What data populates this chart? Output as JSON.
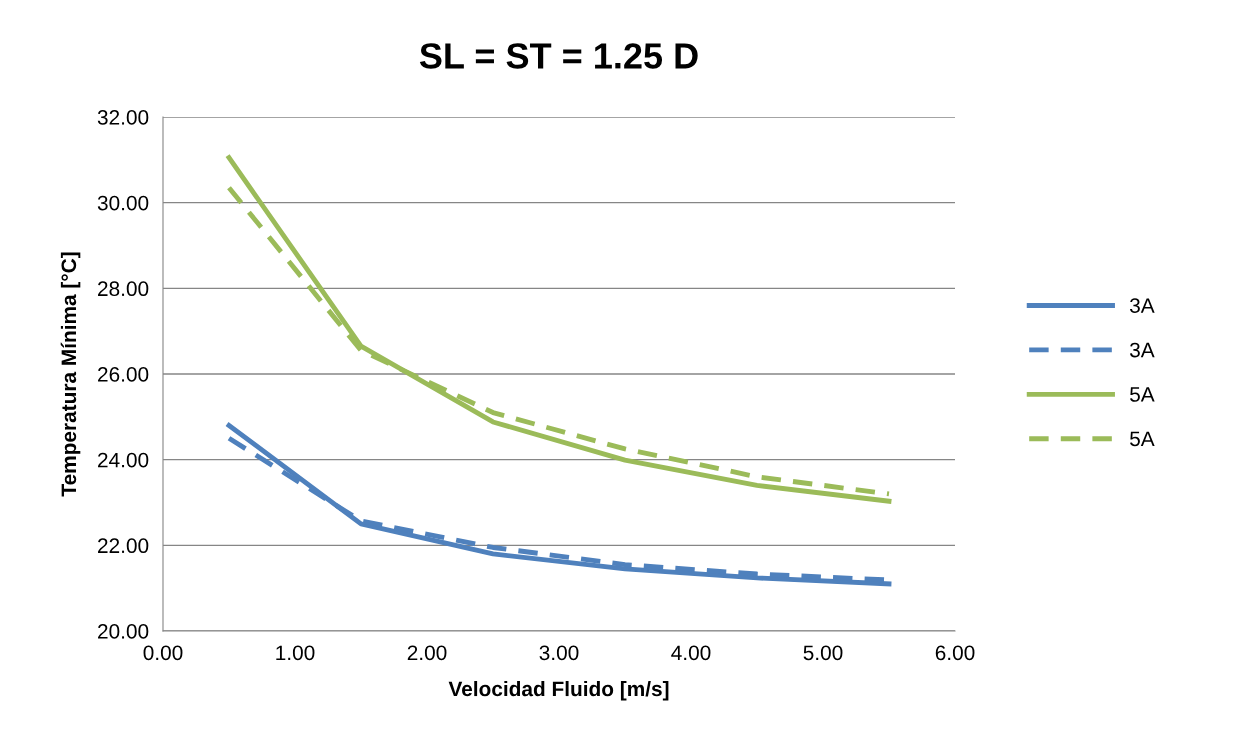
{
  "chart_data": {
    "type": "line",
    "title": "SL = ST = 1.25 D",
    "xlabel": "Velocidad Fluido [m/s]",
    "ylabel": "Temperatura Mínima [°C]",
    "x": [
      0.5,
      1.5,
      2.5,
      3.5,
      4.5,
      5.5
    ],
    "series": [
      {
        "name": "3A",
        "color": "#4f81bd",
        "line_style": "solid",
        "values": [
          24.8,
          22.5,
          21.8,
          21.45,
          21.24,
          21.1
        ]
      },
      {
        "name": "3A",
        "color": "#4f81bd",
        "line_style": "dashed",
        "values": [
          24.5,
          22.57,
          21.95,
          21.55,
          21.33,
          21.19
        ]
      },
      {
        "name": "5A",
        "color": "#9bbb59",
        "line_style": "solid",
        "values": [
          31.05,
          26.65,
          24.88,
          23.99,
          23.4,
          23.03
        ]
      },
      {
        "name": "5A",
        "color": "#9bbb59",
        "line_style": "dashed",
        "values": [
          30.35,
          26.55,
          25.1,
          24.25,
          23.6,
          23.2
        ]
      }
    ],
    "xlim": [
      0,
      6
    ],
    "xticks": [
      {
        "value": 0,
        "label": "0.00"
      },
      {
        "value": 1,
        "label": "1.00"
      },
      {
        "value": 2,
        "label": "2.00"
      },
      {
        "value": 3,
        "label": "3.00"
      },
      {
        "value": 4,
        "label": "4.00"
      },
      {
        "value": 5,
        "label": "5.00"
      },
      {
        "value": 6,
        "label": "6.00"
      }
    ],
    "ylim": [
      20,
      32
    ],
    "yticks": [
      {
        "value": 20,
        "label": "20.00"
      },
      {
        "value": 22,
        "label": "22.00"
      },
      {
        "value": 24,
        "label": "24.00"
      },
      {
        "value": 26,
        "label": "26.00"
      },
      {
        "value": 28,
        "label": "28.00"
      },
      {
        "value": 30,
        "label": "30.00"
      },
      {
        "value": 32,
        "label": "32.00"
      }
    ],
    "grid": "y",
    "legend": "right",
    "marker": "none"
  }
}
